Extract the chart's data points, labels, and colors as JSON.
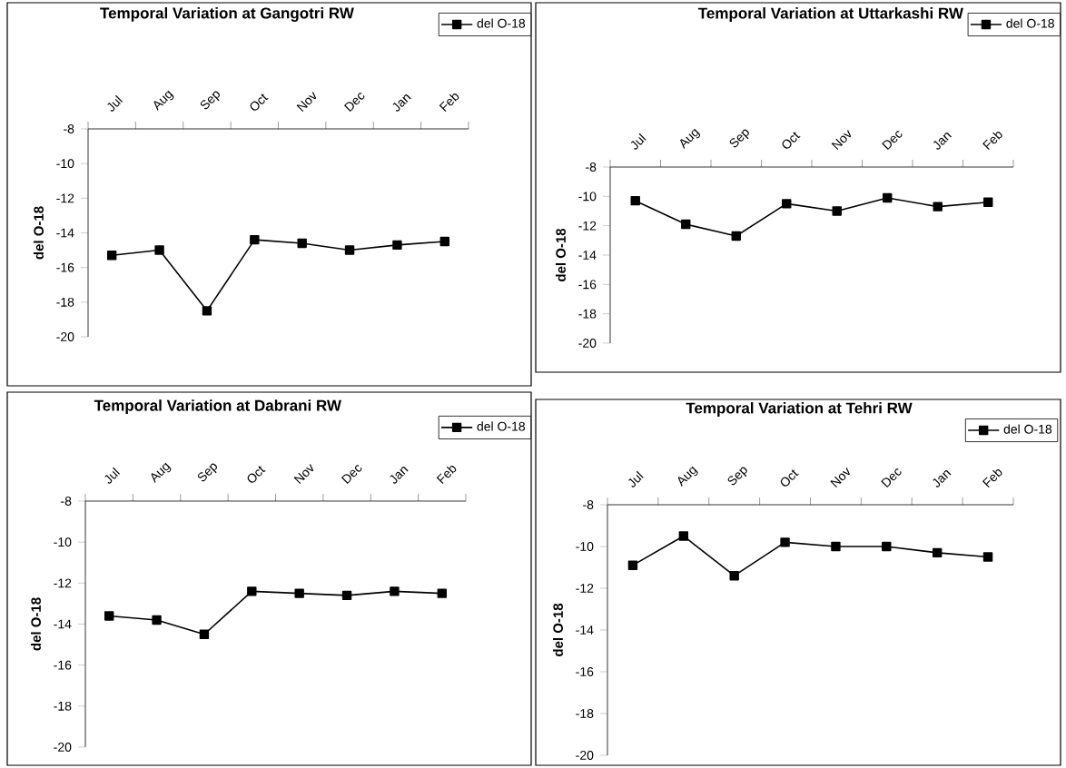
{
  "chart_data": [
    {
      "type": "line",
      "title": "Temporal Variation at Gangotri RW",
      "ylabel": "del O-18",
      "categories": [
        "Jul",
        "Aug",
        "Sep",
        "Oct",
        "Nov",
        "Dec",
        "Jan",
        "Feb"
      ],
      "ylim": [
        -20,
        -8
      ],
      "yticks": [
        -20,
        -18,
        -16,
        -14,
        -12,
        -10,
        -8
      ],
      "legend": "top right",
      "marker": "square",
      "series": [
        {
          "name": "del O-18",
          "color": "#000000",
          "values": [
            -15.3,
            -15.0,
            -18.5,
            -14.4,
            -14.6,
            -15.0,
            -14.7,
            -14.5
          ]
        }
      ]
    },
    {
      "type": "line",
      "title": "Temporal Variation at Uttarkashi RW",
      "ylabel": "del O-18",
      "categories": [
        "Jul",
        "Aug",
        "Sep",
        "Oct",
        "Nov",
        "Dec",
        "Jan",
        "Feb"
      ],
      "ylim": [
        -20,
        -8
      ],
      "yticks": [
        -20,
        -18,
        -16,
        -14,
        -12,
        -10,
        -8
      ],
      "legend": "top right",
      "marker": "square",
      "series": [
        {
          "name": "del O-18",
          "color": "#000000",
          "values": [
            -10.3,
            -11.9,
            -12.7,
            -10.5,
            -11.0,
            -10.1,
            -10.7,
            -10.4
          ]
        }
      ]
    },
    {
      "type": "line",
      "title": "Temporal Variation at Dabrani RW",
      "ylabel": "del O-18",
      "categories": [
        "Jul",
        "Aug",
        "Sep",
        "Oct",
        "Nov",
        "Dec",
        "Jan",
        "Feb"
      ],
      "ylim": [
        -20,
        -8
      ],
      "yticks": [
        -20,
        -18,
        -16,
        -14,
        -12,
        -10,
        -8
      ],
      "legend": "top right",
      "marker": "square",
      "series": [
        {
          "name": "del O-18",
          "color": "#000000",
          "values": [
            -13.6,
            -13.8,
            -14.5,
            -12.4,
            -12.5,
            -12.6,
            -12.4,
            -12.5
          ]
        }
      ]
    },
    {
      "type": "line",
      "title": "Temporal Variation at Tehri RW",
      "ylabel": "del O-18",
      "categories": [
        "Jul",
        "Aug",
        "Sep",
        "Oct",
        "Nov",
        "Dec",
        "Jan",
        "Feb"
      ],
      "ylim": [
        -20,
        -8
      ],
      "yticks": [
        -20,
        -18,
        -16,
        -14,
        -12,
        -10,
        -8
      ],
      "legend": "top right",
      "marker": "square",
      "series": [
        {
          "name": "del O-18",
          "color": "#000000",
          "values": [
            -10.9,
            -9.5,
            -11.4,
            -9.8,
            -10.0,
            -10.0,
            -10.3,
            -10.5
          ]
        }
      ]
    }
  ]
}
